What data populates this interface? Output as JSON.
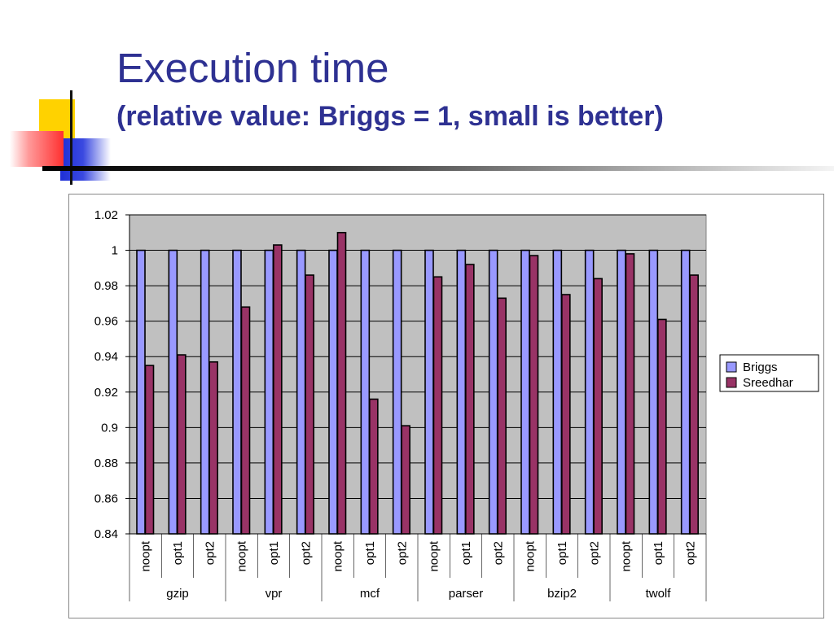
{
  "slide": {
    "title": "Execution time",
    "subtitle": "(relative value: Briggs = 1, small is better)"
  },
  "colors": {
    "title": "#2e3192",
    "plot_background": "#c0c0c0",
    "briggs": "#9999ff",
    "sreedhar": "#993366"
  },
  "chart_data": {
    "type": "bar",
    "title": "",
    "xlabel": "",
    "ylabel": "",
    "ylim": [
      0.84,
      1.02
    ],
    "yticks": [
      "1.02",
      "1",
      "0.98",
      "0.96",
      "0.94",
      "0.92",
      "0.9",
      "0.88",
      "0.86",
      "0.84"
    ],
    "ytick_values": [
      1.02,
      1.0,
      0.98,
      0.96,
      0.94,
      0.92,
      0.9,
      0.88,
      0.86,
      0.84
    ],
    "grid": true,
    "legend_position": "right",
    "groups": [
      "gzip",
      "vpr",
      "mcf",
      "parser",
      "bzip2",
      "twolf"
    ],
    "categories": [
      "noopt",
      "opt1",
      "opt2",
      "noopt",
      "opt1",
      "opt2",
      "noopt",
      "opt1",
      "opt2",
      "noopt",
      "opt1",
      "opt2",
      "noopt",
      "opt1",
      "opt2",
      "noopt",
      "opt1",
      "opt2"
    ],
    "series": [
      {
        "name": "Briggs",
        "color": "#9999ff",
        "values": [
          1,
          1,
          1,
          1,
          1,
          1,
          1,
          1,
          1,
          1,
          1,
          1,
          1,
          1,
          1,
          1,
          1,
          1
        ]
      },
      {
        "name": "Sreedhar",
        "color": "#993366",
        "values": [
          0.935,
          0.941,
          0.937,
          0.968,
          1.003,
          0.986,
          1.01,
          0.916,
          0.901,
          0.985,
          0.992,
          0.973,
          0.997,
          0.975,
          0.984,
          0.998,
          0.961,
          0.986
        ]
      }
    ]
  }
}
